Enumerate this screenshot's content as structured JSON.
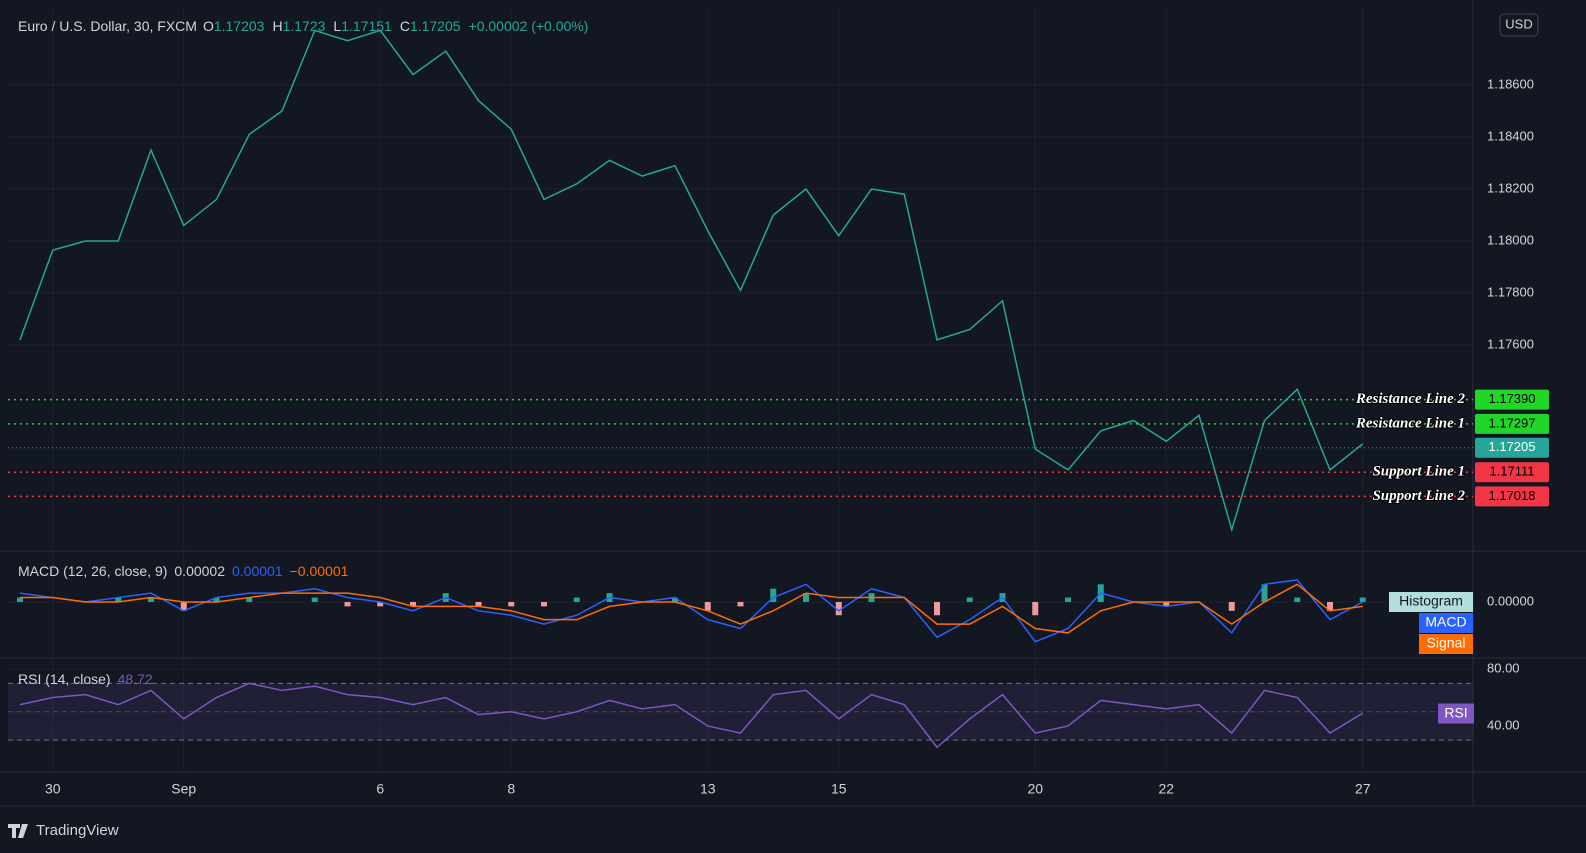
{
  "chart_data": [
    {
      "type": "line",
      "title": "Euro / U.S. Dollar, 30, FXCM",
      "ohlc": [
        {
          "label": "O",
          "value": 1.17203
        },
        {
          "label": "H",
          "value": 1.1723
        },
        {
          "label": "L",
          "value": 1.17151
        },
        {
          "label": "C",
          "value": 1.17205
        }
      ],
      "change": "+0.00002 (+0.00%)",
      "currency": "USD",
      "categories": [
        null,
        "30",
        null,
        null,
        null,
        "Sep",
        null,
        null,
        null,
        null,
        null,
        "6",
        null,
        null,
        null,
        "8",
        null,
        null,
        null,
        null,
        null,
        "13",
        null,
        null,
        null,
        "15",
        null,
        null,
        null,
        null,
        null,
        "20",
        null,
        null,
        null,
        "22",
        null,
        null,
        null,
        null,
        null,
        "27"
      ],
      "series": [
        {
          "name": "EURUSD",
          "color": "#26a69a",
          "values": [
            1.1762,
            1.17965,
            1.18,
            1.18,
            1.1835,
            1.1806,
            1.1816,
            1.1841,
            1.185,
            1.1881,
            1.1877,
            1.1881,
            1.1864,
            1.1873,
            1.1854,
            1.1843,
            1.1816,
            1.1822,
            1.1831,
            1.1825,
            1.1829,
            1.1804,
            1.1781,
            1.181,
            1.182,
            1.1802,
            1.182,
            1.1818,
            1.1762,
            1.1766,
            1.1777,
            1.172,
            1.1712,
            1.1727,
            1.1731,
            1.1723,
            1.1733,
            1.1689,
            1.1731,
            1.1743,
            1.1712,
            1.1722
          ]
        }
      ],
      "ylim": [
        1.16812,
        1.18896
      ],
      "yticks": [
        {
          "value": 1.176,
          "label": "1.17600"
        },
        {
          "value": 1.178,
          "label": "1.17800"
        },
        {
          "value": 1.18,
          "label": "1.18000"
        },
        {
          "value": 1.182,
          "label": "1.18200"
        },
        {
          "value": 1.184,
          "label": "1.18400"
        },
        {
          "value": 1.186,
          "label": "1.18600"
        }
      ],
      "grid": true,
      "levels": [
        {
          "name": "Resistance Line 2",
          "value": 1.1739,
          "label": "1.17390",
          "color": "#22d629"
        },
        {
          "name": "Resistance Line 1",
          "value": 1.17297,
          "label": "1.17297",
          "color": "#22d629"
        },
        {
          "name": "Support Line 1",
          "value": 1.17111,
          "label": "1.17111",
          "color": "#f23645"
        },
        {
          "name": "Support Line 2",
          "value": 1.17018,
          "label": "1.17018",
          "color": "#f23645"
        }
      ],
      "last_price": {
        "value": 1.17205,
        "label": "1.17205",
        "color": "#26a69a"
      }
    },
    {
      "type": "macd",
      "title": "MACD (12, 26, close, 9)",
      "legend_values": [
        {
          "text": "0.00002",
          "color": "#d1d4dc"
        },
        {
          "text": "0.00001",
          "color": "#2962ff"
        },
        {
          "text": "−0.00001",
          "color": "#ff6d00"
        }
      ],
      "series": [
        {
          "name": "Histogram",
          "color": "#26a69a",
          "negative_color": "#ef9a9a",
          "label_color": "#b2dfdb",
          "values": [
            0.0001,
            0,
            0,
            0.0001,
            0.0001,
            -0.0002,
            0.0001,
            0.0001,
            0,
            0.0001,
            -0.0001,
            -0.0001,
            -0.0001,
            0.0002,
            -0.0001,
            -0.0001,
            -0.0001,
            0.0001,
            0.0002,
            0,
            0.0001,
            -0.0002,
            -0.0001,
            0.0003,
            0.0002,
            -0.0003,
            0.0002,
            0,
            -0.0003,
            0.0001,
            0.0002,
            -0.0003,
            0.0001,
            0.0004,
            0,
            -0.0001,
            0,
            -0.0002,
            0.0004,
            0.0001,
            -0.0002,
            0.0001
          ]
        },
        {
          "name": "MACD",
          "color": "#2962ff",
          "label_color": "#2962ff",
          "values": [
            0.0002,
            0.0001,
            0,
            0.0001,
            0.0002,
            -0.0002,
            0.0001,
            0.0002,
            0.0002,
            0.0003,
            0.0001,
            0,
            -0.0002,
            0.0001,
            -0.0002,
            -0.0003,
            -0.0005,
            -0.0003,
            0.0001,
            0,
            0.0001,
            -0.0004,
            -0.0006,
            0.0001,
            0.0004,
            -0.0002,
            0.0003,
            0.0001,
            -0.0008,
            -0.0004,
            0.0001,
            -0.0009,
            -0.0006,
            0.0002,
            0,
            -0.0001,
            0,
            -0.0007,
            0.0004,
            0.0005,
            -0.0004,
            0
          ]
        },
        {
          "name": "Signal",
          "color": "#ff6d00",
          "label_color": "#ff6d00",
          "values": [
            0.0001,
            0.0001,
            0,
            0,
            0.0001,
            0,
            0,
            0.0001,
            0.0002,
            0.0002,
            0.0002,
            0.0001,
            -0.0001,
            -0.0001,
            -0.0001,
            -0.0002,
            -0.0004,
            -0.0004,
            -0.0001,
            0,
            0,
            -0.0002,
            -0.0005,
            -0.0002,
            0.0002,
            0.0001,
            0.0001,
            0.0001,
            -0.0005,
            -0.0005,
            -0.0001,
            -0.0006,
            -0.0007,
            -0.0002,
            0,
            0,
            0,
            -0.0005,
            0,
            0.0004,
            -0.0002,
            -0.0001
          ]
        }
      ],
      "ylim": [
        -0.0012,
        0.00095
      ],
      "yticks": [
        {
          "value": 0,
          "label": "0.00000"
        }
      ]
    },
    {
      "type": "rsi",
      "title": "RSI (14, close)",
      "current": 48.72,
      "series": [
        {
          "name": "RSI",
          "color": "#7e57c2",
          "values": [
            55,
            60,
            62,
            55,
            65,
            45,
            60,
            70,
            65,
            68,
            62,
            60,
            55,
            60,
            48,
            50,
            45,
            50,
            58,
            52,
            55,
            40,
            35,
            62,
            65,
            45,
            62,
            55,
            25,
            45,
            62,
            35,
            40,
            58,
            55,
            52,
            55,
            35,
            65,
            60,
            35,
            49
          ]
        }
      ],
      "bands": [
        30,
        50,
        70
      ],
      "ylim": [
        9,
        85
      ],
      "yticks": [
        {
          "value": 80,
          "label": "80.00"
        },
        {
          "value": 40,
          "label": "40.00"
        }
      ]
    }
  ],
  "footer": "TradingView"
}
